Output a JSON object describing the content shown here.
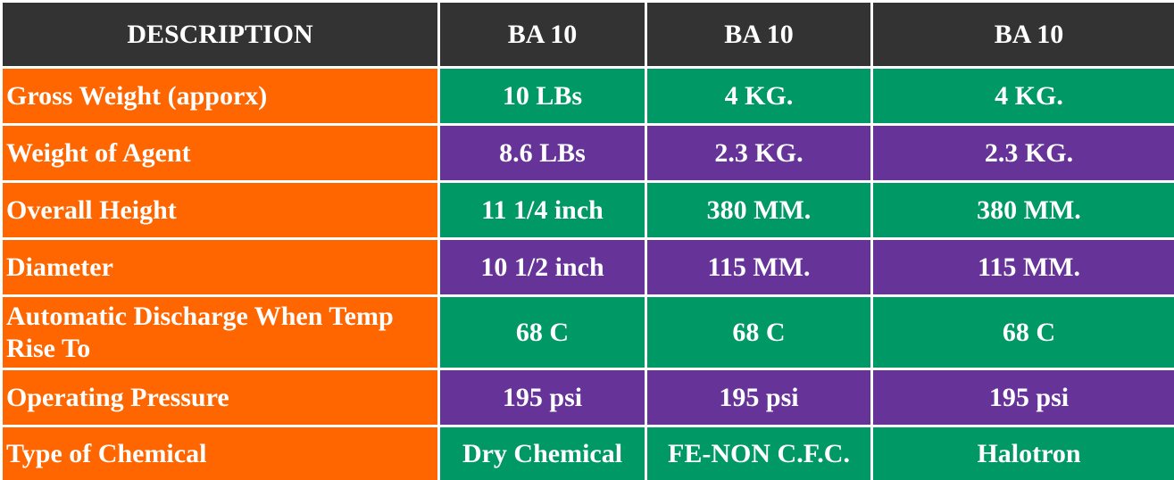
{
  "table": {
    "headers": [
      "DESCRIPTION",
      "BA 10",
      "BA 10",
      "BA 10"
    ],
    "rows": [
      {
        "label": "Gross Weight (apporx)",
        "values": [
          "10 LBs",
          "4 KG.",
          "4 KG."
        ],
        "shade": "green"
      },
      {
        "label": "Weight of Agent",
        "values": [
          "8.6 LBs",
          "2.3 KG.",
          "2.3 KG."
        ],
        "shade": "purple"
      },
      {
        "label": "Overall Height",
        "values": [
          "11 1/4 inch",
          "380 MM.",
          "380 MM."
        ],
        "shade": "green"
      },
      {
        "label": "Diameter",
        "values": [
          "10 1/2 inch",
          "115 MM.",
          "115 MM."
        ],
        "shade": "purple"
      },
      {
        "label": "Automatic Discharge When Temp Rise To",
        "values": [
          "68 C",
          "68 C",
          "68 C"
        ],
        "shade": "green"
      },
      {
        "label": "Operating Pressure",
        "values": [
          "195 psi",
          "195 psi",
          "195 psi"
        ],
        "shade": "purple"
      },
      {
        "label": "Type of Chemical",
        "values": [
          "Dry Chemical",
          "FE-NON C.F.C.",
          "Halotron"
        ],
        "shade": "green"
      }
    ]
  },
  "colors": {
    "header_bg": "#333333",
    "description_bg": "#ff6600",
    "green_row_bg": "#009966",
    "purple_row_bg": "#663399",
    "text": "#ffffff"
  }
}
